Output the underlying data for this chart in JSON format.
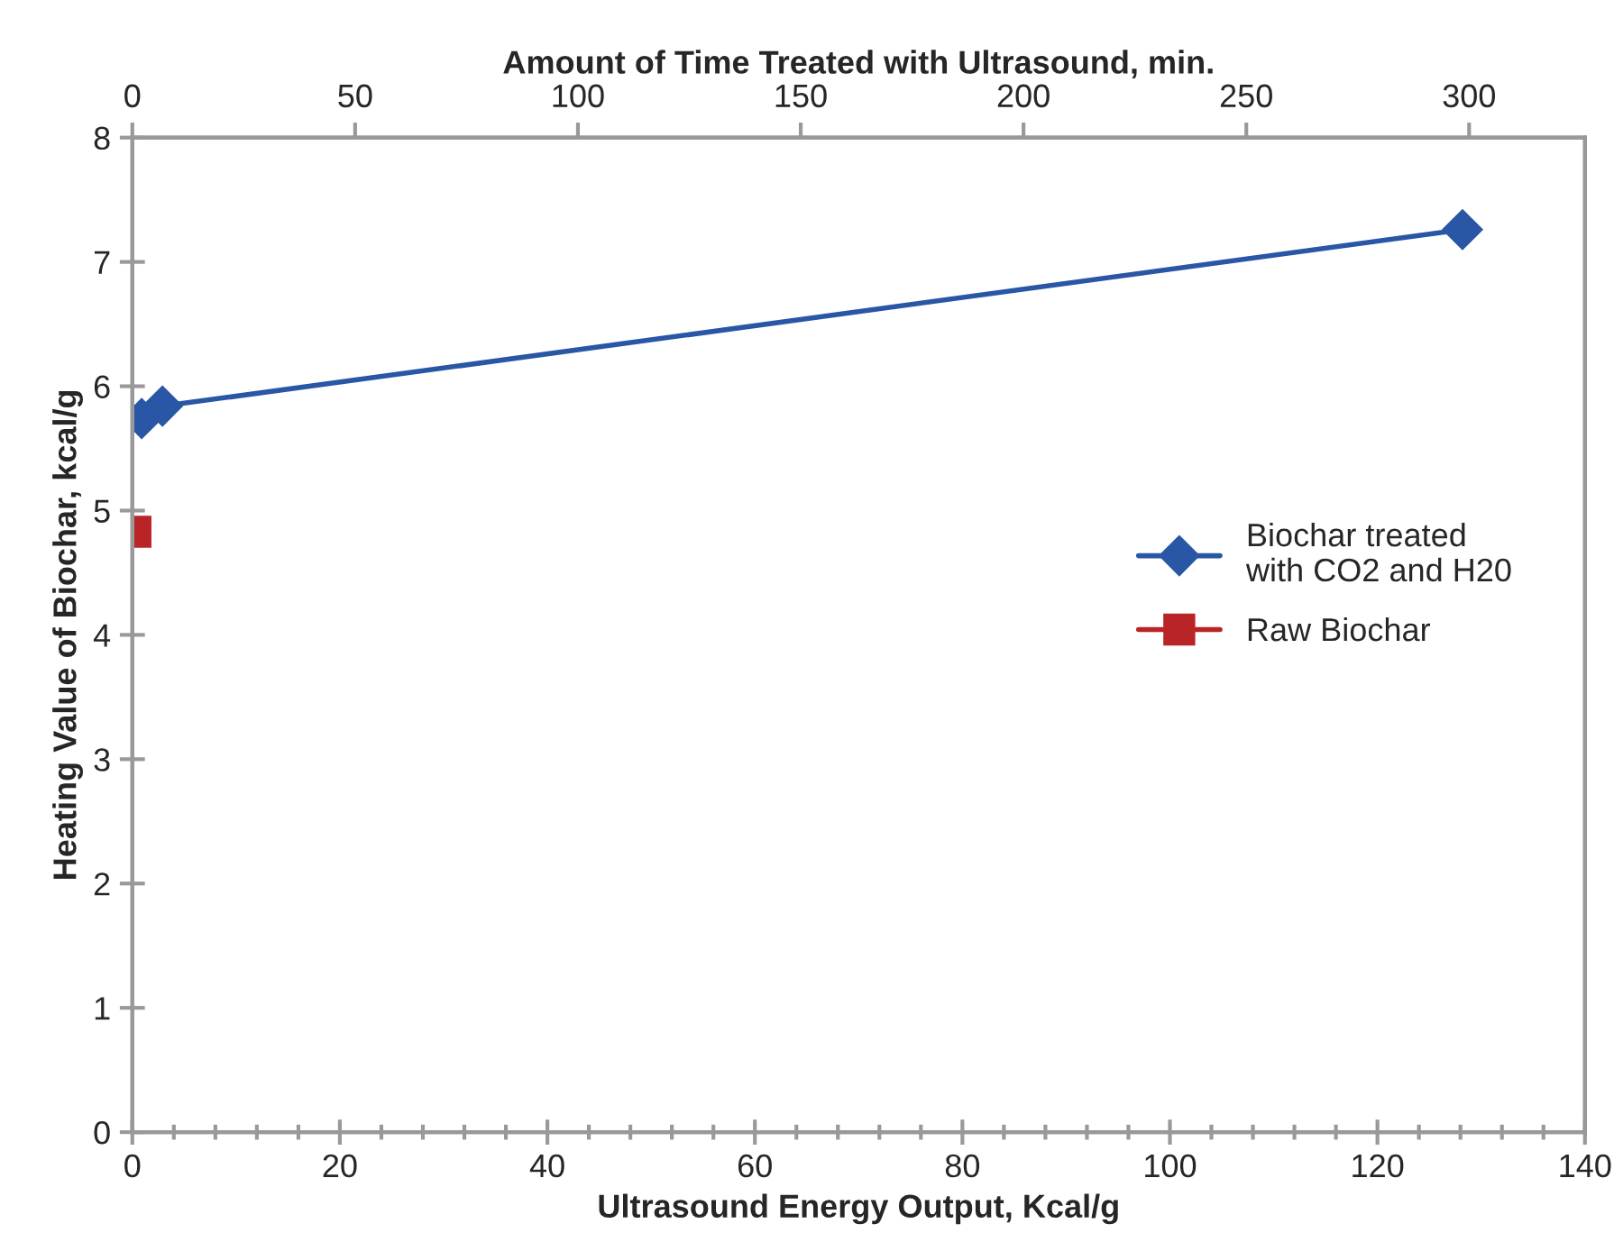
{
  "chart_data": {
    "type": "line",
    "xlabel": "Ultrasound Energy Output, Kcal/g",
    "ylabel": "Heating Value of Biochar, kcal/g",
    "x2label": "Amount of Time Treated with Ultrasound, min.",
    "xlim": [
      0,
      140
    ],
    "xticks": [
      0,
      20,
      40,
      60,
      80,
      100,
      120,
      140
    ],
    "x2lim": [
      0,
      326
    ],
    "x2ticks": [
      0,
      50,
      100,
      150,
      200,
      250,
      300
    ],
    "ylim": [
      0,
      8
    ],
    "yticks": [
      0,
      1,
      2,
      3,
      4,
      5,
      6,
      7,
      8
    ],
    "series": [
      {
        "name": "Biochar treated\nwith CO2 and H20",
        "color": "#2a56a6",
        "marker": "diamond",
        "x": [
          0.9,
          2.9,
          128.2
        ],
        "values": [
          5.74,
          5.84,
          7.26
        ]
      },
      {
        "name": "Raw Biochar",
        "color": "#b92527",
        "marker": "square",
        "x": [
          0.3
        ],
        "values": [
          4.83
        ]
      }
    ],
    "grid": false,
    "legend": "right"
  }
}
